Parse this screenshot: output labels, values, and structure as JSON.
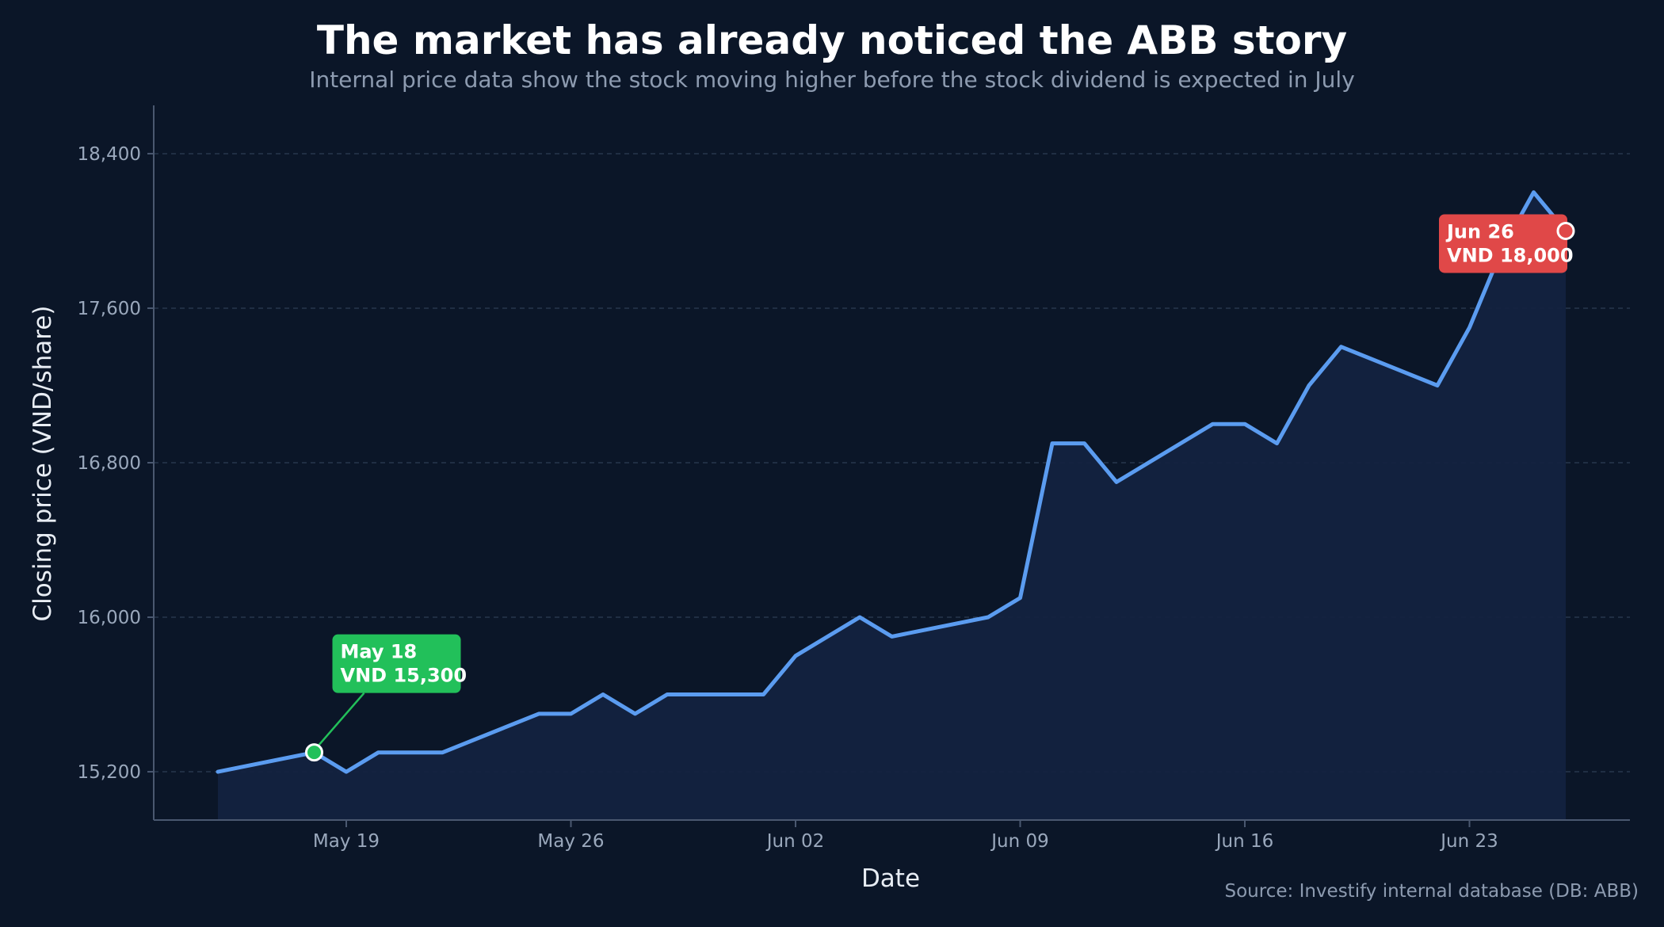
{
  "title": "The market has already noticed the ABB story",
  "subtitle": "Internal price data show the stock moving higher before the stock dividend is expected in July",
  "source": "Source: Investify internal database (DB: ABB)",
  "colors": {
    "background": "#0b1628",
    "line": "#5b9cf0",
    "area": "#13223f",
    "start_marker": "#22c05a",
    "end_marker": "#e04848",
    "grid": "#27364c",
    "axis": "#4a5870"
  },
  "chart_data": {
    "type": "area",
    "xlabel": "Date",
    "ylabel": "Closing price (VND/share)",
    "ylim": [
      14950,
      18650
    ],
    "xlim": [
      "2026-05-13",
      "2026-06-28"
    ],
    "grid": "horizontal-dashed",
    "x_ticks": [
      {
        "date": "2026-05-19",
        "label": "May 19"
      },
      {
        "date": "2026-05-26",
        "label": "May 26"
      },
      {
        "date": "2026-06-02",
        "label": "Jun 02"
      },
      {
        "date": "2026-06-09",
        "label": "Jun 09"
      },
      {
        "date": "2026-06-16",
        "label": "Jun 16"
      },
      {
        "date": "2026-06-23",
        "label": "Jun 23"
      }
    ],
    "y_ticks": [
      {
        "value": 15200,
        "label": "15,200"
      },
      {
        "value": 16000,
        "label": "16,000"
      },
      {
        "value": 16800,
        "label": "16,800"
      },
      {
        "value": 17600,
        "label": "17,600"
      },
      {
        "value": 18400,
        "label": "18,400"
      }
    ],
    "series": [
      {
        "x": [
          "2026-05-15",
          "2026-05-18",
          "2026-05-19",
          "2026-05-20",
          "2026-05-21",
          "2026-05-22",
          "2026-05-25",
          "2026-05-26",
          "2026-05-27",
          "2026-05-28",
          "2026-05-29",
          "2026-06-01",
          "2026-06-02",
          "2026-06-03",
          "2026-06-04",
          "2026-06-05",
          "2026-06-08",
          "2026-06-09",
          "2026-06-10",
          "2026-06-11",
          "2026-06-12",
          "2026-06-15",
          "2026-06-16",
          "2026-06-17",
          "2026-06-18",
          "2026-06-19",
          "2026-06-22",
          "2026-06-23",
          "2026-06-24",
          "2026-06-25",
          "2026-06-26"
        ],
        "values": [
          15200,
          15300,
          15200,
          15300,
          15300,
          15300,
          15500,
          15500,
          15600,
          15500,
          15600,
          15600,
          15800,
          15900,
          16000,
          15900,
          16000,
          16100,
          16900,
          16900,
          16700,
          17000,
          17000,
          16900,
          17200,
          17400,
          17200,
          17500,
          17900,
          18200,
          18000
        ]
      }
    ],
    "annotations": [
      {
        "date": "2026-05-18",
        "value": 15300,
        "line1": "May 18",
        "line2": "VND 15,300",
        "style": "start",
        "placement": "upper-right"
      },
      {
        "date": "2026-06-26",
        "value": 18000,
        "line1": "Jun 26",
        "line2": "VND 18,000",
        "style": "end",
        "placement": "left"
      }
    ]
  }
}
